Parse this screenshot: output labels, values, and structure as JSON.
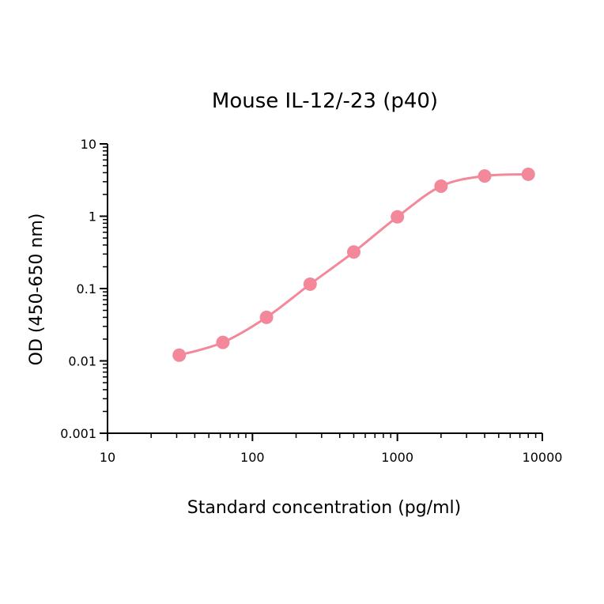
{
  "chart_data": {
    "type": "line",
    "title": "Mouse IL-12/-23 (p40)",
    "xlabel": "Standard concentration (pg/ml)",
    "ylabel": "OD (450-650 nm)",
    "x_scale": "log",
    "y_scale": "log",
    "xlim": [
      10,
      10000
    ],
    "ylim": [
      0.001,
      10
    ],
    "x_ticks": [
      {
        "value": 10,
        "label": "10"
      },
      {
        "value": 100,
        "label": "100"
      },
      {
        "value": 1000,
        "label": "1000"
      },
      {
        "value": 10000,
        "label": "10000"
      }
    ],
    "y_ticks": [
      {
        "value": 0.001,
        "label": "0.001"
      },
      {
        "value": 0.01,
        "label": "0.01"
      },
      {
        "value": 0.1,
        "label": "0.1"
      },
      {
        "value": 1,
        "label": "1"
      },
      {
        "value": 10,
        "label": "10"
      }
    ],
    "grid": false,
    "series": [
      {
        "color": "#f2889a",
        "x": [
          31.25,
          62.5,
          125,
          250,
          500,
          1000,
          2000,
          4000,
          8000
        ],
        "y": [
          0.012,
          0.018,
          0.04,
          0.115,
          0.32,
          0.98,
          2.6,
          3.6,
          3.8
        ]
      }
    ]
  }
}
